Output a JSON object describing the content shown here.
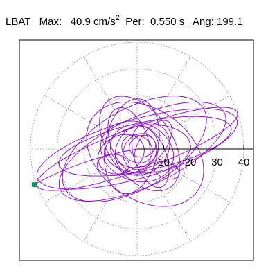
{
  "header": {
    "station": "LBAT",
    "max_label": "Max:",
    "max_value": "40.9 cm/s",
    "max_exponent": "2",
    "per_label": "Per:",
    "per_value": "0.550 s",
    "ang_label": "Ang: 199.1"
  },
  "colors": {
    "trace": "#8a00d4",
    "marker": "#009a6e",
    "grid": "#777777"
  },
  "chart_data": {
    "type": "scatter",
    "title": "LBAT   Max:   40.9 cm/s2  Per:  0.550 s   Ang: 199.1",
    "xlabel": "",
    "ylabel": "",
    "grid": true,
    "polar_grid": true,
    "rings": [
      10,
      20,
      30,
      40
    ],
    "radial_spokes_deg": [
      0,
      30,
      60,
      90,
      120,
      150,
      180,
      210,
      240,
      270,
      300,
      330
    ],
    "radial_tick_labels": [
      "10",
      "20",
      "30",
      "40"
    ],
    "xlim": [
      -43.5,
      43.5
    ],
    "ylim": [
      -43.5,
      43.5
    ],
    "max_amplitude": 40.9,
    "max_angle_deg": 199.1,
    "end_point": {
      "x": -38.6,
      "y": -13.4
    },
    "loops": [
      {
        "cx": 0,
        "cy": 0,
        "rx": 40,
        "ry": 8,
        "rot": 20
      },
      {
        "cx": 0,
        "cy": 0,
        "rx": 39,
        "ry": 11,
        "rot": 16
      },
      {
        "cx": 2,
        "cy": -1,
        "rx": 34,
        "ry": 13,
        "rot": 25
      },
      {
        "cx": 3,
        "cy": 1,
        "rx": 33,
        "ry": 9,
        "rot": 12
      },
      {
        "cx": -1,
        "cy": 0,
        "rx": 30,
        "ry": 15,
        "rot": 30
      },
      {
        "cx": 3,
        "cy": -2,
        "rx": 24,
        "ry": 17,
        "rot": -35
      },
      {
        "cx": 1,
        "cy": 2,
        "rx": 20,
        "ry": 12,
        "rot": -55
      },
      {
        "cx": -2,
        "cy": 1,
        "rx": 18,
        "ry": 10,
        "rot": 80
      },
      {
        "cx": 4,
        "cy": 0,
        "rx": 16,
        "ry": 9,
        "rot": 5
      },
      {
        "cx": 0,
        "cy": -1,
        "rx": 14,
        "ry": 11,
        "rot": -20
      },
      {
        "cx": 2,
        "cy": 0,
        "rx": 11,
        "ry": 9,
        "rot": 40
      },
      {
        "cx": -1,
        "cy": 1,
        "rx": 9,
        "ry": 8,
        "rot": 0
      },
      {
        "cx": 1,
        "cy": -1,
        "rx": 7,
        "ry": 6,
        "rot": 60
      },
      {
        "cx": 0,
        "cy": 0,
        "rx": 6,
        "ry": 5,
        "rot": -30
      },
      {
        "cx": 2,
        "cy": 1,
        "rx": 5,
        "ry": 4,
        "rot": 15
      },
      {
        "cx": -3,
        "cy": 3,
        "rx": 13,
        "ry": 7,
        "rot": 110
      },
      {
        "cx": 5,
        "cy": -3,
        "rx": 12,
        "ry": 6,
        "rot": -70
      },
      {
        "cx": -6,
        "cy": -2,
        "rx": 9,
        "ry": 7,
        "rot": 25
      },
      {
        "cx": 6,
        "cy": 2,
        "rx": 10,
        "ry": 5,
        "rot": 55
      },
      {
        "cx": -9,
        "cy": -6,
        "rx": 6,
        "ry": 4,
        "rot": 0
      },
      {
        "cx": 11,
        "cy": -8,
        "rx": 5,
        "ry": 3,
        "rot": -20
      }
    ]
  }
}
